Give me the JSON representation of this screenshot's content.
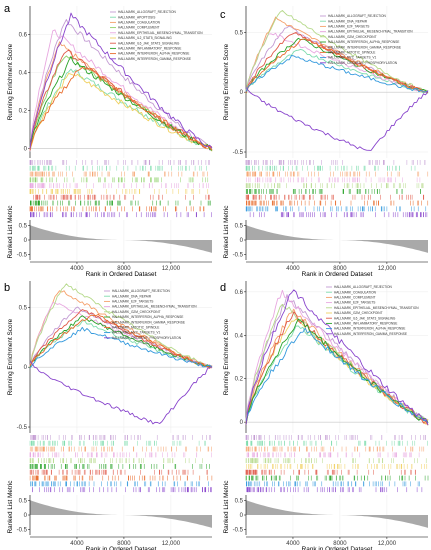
{
  "figure_labels": {
    "y_top": "Running Enrichment Score",
    "y_bottom": "Ranked List Metric",
    "x": "Rank in Ordered Dataset"
  },
  "chart_data": [
    {
      "panel": "a",
      "type": "line",
      "ylabel": "Running Enrichment Score",
      "ylabel_bottom": "Ranked List Metric",
      "xlabel": "Rank in Ordered Dataset",
      "xlim": [
        0,
        15500
      ],
      "ylim": [
        -0.05,
        0.75
      ],
      "yticks": [
        0.0,
        0.2,
        0.4,
        0.6
      ],
      "xticks": [
        4000,
        8000,
        12000
      ],
      "xtick_labels": [
        "4000",
        "8000",
        "12,000"
      ],
      "metric_ylim": [
        -0.7,
        0.7
      ],
      "metric_yticks": [
        0.5,
        0.0,
        -0.5
      ],
      "series": [
        {
          "name": "HALLMARK_ALLOGRAFT_REJECTION",
          "color": "#c39bd3",
          "peak_x": 3000,
          "peak": 0.68
        },
        {
          "name": "HALLMARK_APOPTOSIS",
          "color": "#7fdcae",
          "peak_x": 3500,
          "peak": 0.42
        },
        {
          "name": "HALLMARK_COAGULATION",
          "color": "#f5a06a",
          "peak_x": 2500,
          "peak": 0.55
        },
        {
          "name": "HALLMARK_COMPLEMENT",
          "color": "#8fd16b",
          "peak_x": 3000,
          "peak": 0.5
        },
        {
          "name": "HALLMARK_EPITHELIAL_MESENCHYMAL_TRANSITION",
          "color": "#e8a8e0",
          "peak_x": 2000,
          "peak": 0.62
        },
        {
          "name": "HALLMARK_IL2_STAT5_SIGNALING",
          "color": "#f0d060",
          "peak_x": 3500,
          "peak": 0.4
        },
        {
          "name": "HALLMARK_IL6_JAK_STAT3_SIGNALING",
          "color": "#e05a4a",
          "peak_x": 3000,
          "peak": 0.52
        },
        {
          "name": "HALLMARK_INFLAMMATORY_RESPONSE",
          "color": "#29a329",
          "peak_x": 3500,
          "peak": 0.47
        },
        {
          "name": "HALLMARK_INTERFERON_ALPHA_RESPONSE",
          "color": "#e86b2a",
          "peak_x": 4500,
          "peak": 0.44
        },
        {
          "name": "HALLMARK_INTERFERON_GAMMA_RESPONSE",
          "color": "#8844cc",
          "peak_x": 3500,
          "peak": 0.7
        }
      ]
    },
    {
      "panel": "c",
      "type": "line",
      "ylabel": "Running Enrichment Score",
      "ylabel_bottom": "Ranked List Metric",
      "xlabel": "Rank in Ordered Dataset",
      "xlim": [
        0,
        15500
      ],
      "ylim": [
        -0.55,
        0.72
      ],
      "yticks": [
        -0.5,
        0.0,
        0.5
      ],
      "xticks": [
        4000,
        8000,
        12000
      ],
      "xtick_labels": [
        "4000",
        "8000",
        "12,000"
      ],
      "metric_ylim": [
        -0.7,
        0.7
      ],
      "metric_yticks": [
        0.5,
        0.0,
        -0.5
      ],
      "series": [
        {
          "name": "HALLMARK_ALLOGRAFT_REJECTION",
          "color": "#c39bd3",
          "peak_x": 3500,
          "peak": 0.55
        },
        {
          "name": "HALLMARK_DNA_REPAIR",
          "color": "#7fdcae",
          "peak_x": 4500,
          "peak": 0.35
        },
        {
          "name": "HALLMARK_E2F_TARGETS",
          "color": "#f5a06a",
          "peak_x": 2500,
          "peak": 0.62
        },
        {
          "name": "HALLMARK_EPITHELIAL_MESENCHYMAL_TRANSITION",
          "color": "#e8a8e0",
          "peak_x": 2000,
          "peak": 0.5
        },
        {
          "name": "HALLMARK_G2M_CHECKPOINT",
          "color": "#b5d98a",
          "peak_x": 3000,
          "peak": 0.68
        },
        {
          "name": "HALLMARK_INTERFERON_ALPHA_RESPONSE",
          "color": "#29a329",
          "peak_x": 4500,
          "peak": 0.45
        },
        {
          "name": "HALLMARK_INTERFERON_GAMMA_RESPONSE",
          "color": "#e05a4a",
          "peak_x": 4000,
          "peak": 0.5
        },
        {
          "name": "HALLMARK_MITOTIC_SPINDLE",
          "color": "#e86b2a",
          "peak_x": 5000,
          "peak": 0.45
        },
        {
          "name": "HALLMARK_MYC_TARGETS_V1",
          "color": "#3399dd",
          "peak_x": 4000,
          "peak": 0.3
        },
        {
          "name": "HALLMARK_OXIDATIVE_PHOSPHORYLATION",
          "color": "#8844cc",
          "peak_x": 10500,
          "peak": -0.5
        }
      ]
    },
    {
      "panel": "b",
      "type": "line",
      "ylabel": "Running Enrichment Score",
      "ylabel_bottom": "Ranked List Metric",
      "xlabel": "Rank in Ordered Dataset",
      "xlim": [
        0,
        15500
      ],
      "ylim": [
        -0.55,
        0.72
      ],
      "yticks": [
        -0.5,
        0.0,
        0.5
      ],
      "xticks": [
        4000,
        8000,
        12000
      ],
      "xtick_labels": [
        "4000",
        "8000",
        "12,000"
      ],
      "metric_ylim": [
        -0.7,
        0.7
      ],
      "metric_yticks": [
        0.5,
        0.0,
        -0.5
      ],
      "series": [
        {
          "name": "HALLMARK_ALLOGRAFT_REJECTION",
          "color": "#c39bd3",
          "peak_x": 4000,
          "peak": 0.5
        },
        {
          "name": "HALLMARK_DNA_REPAIR",
          "color": "#7fdcae",
          "peak_x": 4500,
          "peak": 0.38
        },
        {
          "name": "HALLMARK_E2F_TARGETS",
          "color": "#f5a06a",
          "peak_x": 2500,
          "peak": 0.65
        },
        {
          "name": "HALLMARK_EPITHELIAL_MESENCHYMAL_TRANSITION",
          "color": "#e8a8e0",
          "peak_x": 2000,
          "peak": 0.55
        },
        {
          "name": "HALLMARK_G2M_CHECKPOINT",
          "color": "#b5d98a",
          "peak_x": 3000,
          "peak": 0.7
        },
        {
          "name": "HALLMARK_INTERFERON_ALPHA_RESPONSE",
          "color": "#29a329",
          "peak_x": 4500,
          "peak": 0.42
        },
        {
          "name": "HALLMARK_INTERFERON_GAMMA_RESPONSE",
          "color": "#e05a4a",
          "peak_x": 4500,
          "peak": 0.48
        },
        {
          "name": "HALLMARK_MITOTIC_SPINDLE",
          "color": "#e86b2a",
          "peak_x": 5500,
          "peak": 0.45
        },
        {
          "name": "HALLMARK_MYC_TARGETS_V1",
          "color": "#3399dd",
          "peak_x": 4500,
          "peak": 0.32
        },
        {
          "name": "HALLMARK_OXIDATIVE_PHOSPHORYLATION",
          "color": "#8844cc",
          "peak_x": 11000,
          "peak": -0.48
        }
      ]
    },
    {
      "panel": "d",
      "type": "line",
      "ylabel": "Running Enrichment Score",
      "ylabel_bottom": "Ranked List Metric",
      "xlabel": "Rank in Ordered Dataset",
      "xlim": [
        0,
        15500
      ],
      "ylim": [
        -0.05,
        0.65
      ],
      "yticks": [
        0.0,
        0.2,
        0.4,
        0.6
      ],
      "xticks": [
        4000,
        8000,
        12000
      ],
      "xtick_labels": [
        "4000",
        "8000",
        "12,000"
      ],
      "metric_ylim": [
        -0.7,
        0.7
      ],
      "metric_yticks": [
        0.5,
        0.0,
        -0.5
      ],
      "series": [
        {
          "name": "HALLMARK_ALLOGRAFT_REJECTION",
          "color": "#c39bd3",
          "peak_x": 3500,
          "peak": 0.58
        },
        {
          "name": "HALLMARK_COAGULATION",
          "color": "#7fdcae",
          "peak_x": 4500,
          "peak": 0.45
        },
        {
          "name": "HALLMARK_COMPLEMENT",
          "color": "#f5a06a",
          "peak_x": 4000,
          "peak": 0.52
        },
        {
          "name": "HALLMARK_E2F_TARGETS",
          "color": "#e8a8e0",
          "peak_x": 3000,
          "peak": 0.6
        },
        {
          "name": "HALLMARK_EPITHELIAL_MESENCHYMAL_TRANSITION",
          "color": "#b5d98a",
          "peak_x": 3000,
          "peak": 0.55
        },
        {
          "name": "HALLMARK_G2M_CHECKPOINT",
          "color": "#f0d060",
          "peak_x": 4000,
          "peak": 0.48
        },
        {
          "name": "HALLMARK_IL6_JAK_STAT3_SIGNALING",
          "color": "#e05a4a",
          "peak_x": 4000,
          "peak": 0.5
        },
        {
          "name": "HALLMARK_INFLAMMATORY_RESPONSE",
          "color": "#29a329",
          "peak_x": 4500,
          "peak": 0.47
        },
        {
          "name": "HALLMARK_INTERFERON_ALPHA_RESPONSE",
          "color": "#3399dd",
          "peak_x": 5000,
          "peak": 0.43
        },
        {
          "name": "HALLMARK_INTERFERON_GAMMA_RESPONSE",
          "color": "#8844cc",
          "peak_x": 4000,
          "peak": 0.61
        }
      ]
    }
  ]
}
